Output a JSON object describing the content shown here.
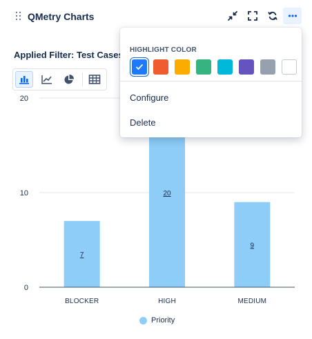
{
  "header": {
    "title": "QMetry Charts",
    "icons": [
      "drag-handle-icon",
      "collapse-icon",
      "fullscreen-icon",
      "refresh-icon",
      "more-icon"
    ]
  },
  "filter": {
    "label": "Applied Filter: Test Cases"
  },
  "toolbar": {
    "buttons": [
      "bar-chart-icon",
      "line-chart-icon",
      "pie-chart-icon",
      "table-icon"
    ],
    "selected": "bar-chart-icon"
  },
  "menu": {
    "heading": "HIGHLIGHT COLOR",
    "colors": [
      "#1d7afc",
      "#f15b30",
      "#fcab00",
      "#36b37e",
      "#00b8d9",
      "#6554c0",
      "#97a0af",
      "#ffffff"
    ],
    "selected_color": "#1d7afc",
    "items": [
      "Configure",
      "Delete"
    ]
  },
  "chart_data": {
    "type": "bar",
    "categories": [
      "BLOCKER",
      "HIGH",
      "MEDIUM"
    ],
    "series": [
      {
        "name": "Priority",
        "values": [
          7,
          20,
          9
        ],
        "color": "#8ecdf8"
      }
    ],
    "yticks": [
      0,
      10,
      20
    ],
    "ylim": [
      0,
      20
    ],
    "grid": true,
    "legend": "bottom-center",
    "data_labels": [
      "7",
      "20",
      "9"
    ]
  }
}
